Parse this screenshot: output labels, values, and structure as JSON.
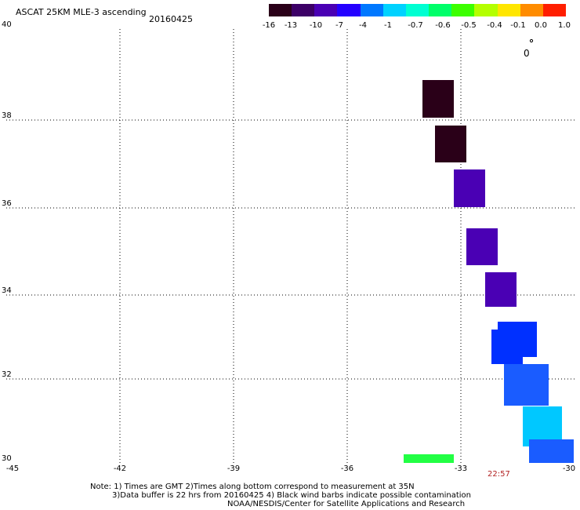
{
  "header": {
    "title": "ASCAT 25KM MLE-3 ascending",
    "date": "20160425"
  },
  "colorbar": {
    "labels": [
      "-16",
      "-13",
      "-10",
      "-7",
      "-4",
      "-1",
      "-0.7",
      "-0.6",
      "-0.5",
      "-0.4",
      "-0.1",
      "0.0",
      "1.0"
    ],
    "colors": [
      "#2a0018",
      "#3c0066",
      "#4a00b4",
      "#2400ff",
      "#0078ff",
      "#00d2ff",
      "#00ffd2",
      "#00ff6a",
      "#3cff00",
      "#b4ff00",
      "#ffe600",
      "#ff8c00",
      "#ff1e00"
    ]
  },
  "axes": {
    "y_labels": [
      "40",
      "38",
      "36",
      "34",
      "32",
      "30"
    ],
    "x_labels": [
      "-45",
      "-42",
      "-39",
      "-36",
      "-33",
      "-30"
    ]
  },
  "time_label": "22:57",
  "wind_barb_label": "0",
  "notes": {
    "line1": "Note: 1) Times are GMT 2)Times along bottom correspond to measurement at 35N",
    "line2": "3)Data buffer is 22 hrs from 20160425 4) Black wind barbs indicate possible contamination",
    "line3": "NOAA/NESDIS/Center for Satellite Applications and Research"
  },
  "swath_colors": {
    "very_dark": "#2a0018",
    "violet": "#4a00b4",
    "blue": "#0030ff",
    "mid_blue": "#1a5cff",
    "cyan": "#00c8ff",
    "green": "#22ff44"
  }
}
